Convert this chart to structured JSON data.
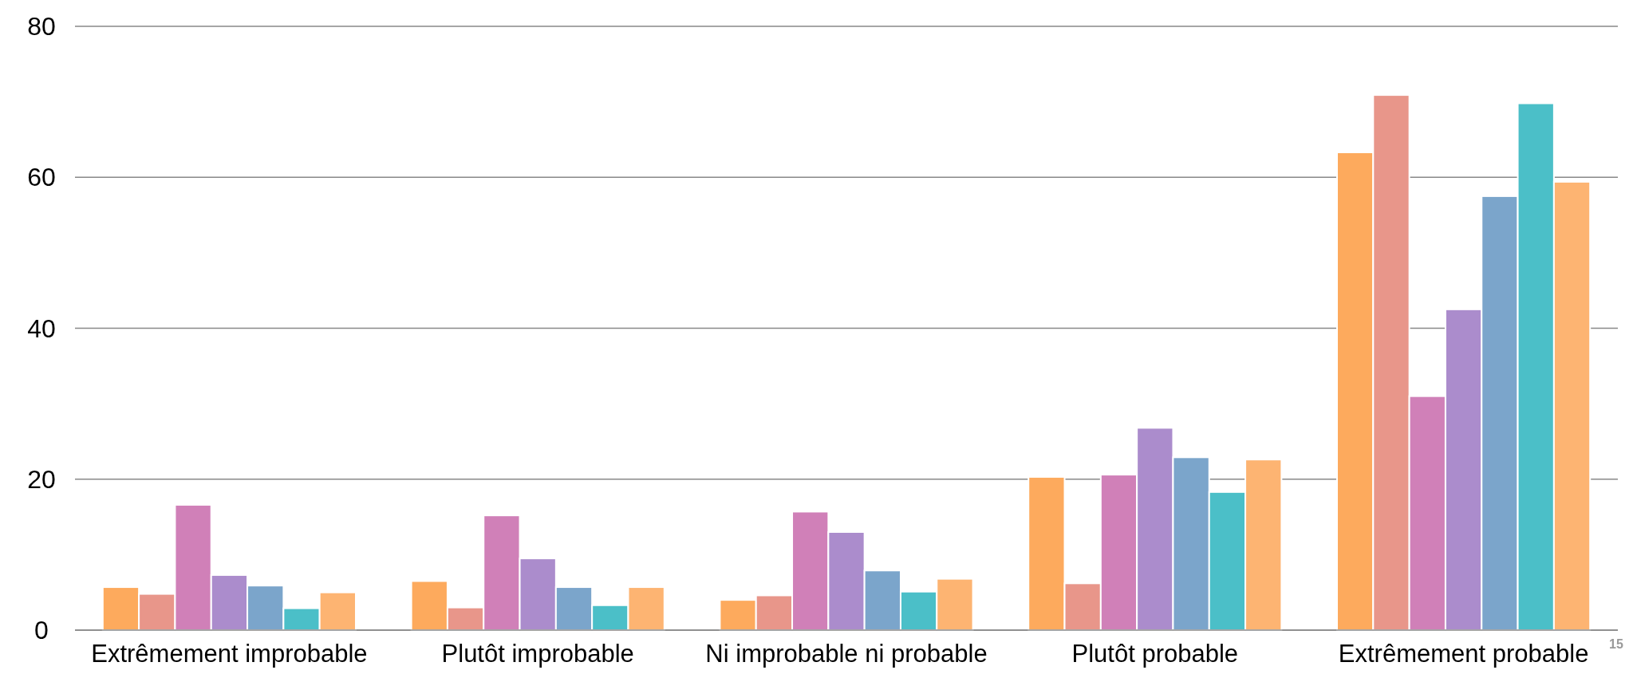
{
  "chart_data": {
    "type": "bar",
    "categories": [
      "Extrêmement improbable",
      "Plutôt improbable",
      "Ni improbable ni probable",
      "Plutôt probable",
      "Extrêmement probable"
    ],
    "series": [
      {
        "color": "#fdaa5d",
        "values": [
          5.7,
          6.5,
          4.0,
          20.3,
          63.3
        ]
      },
      {
        "color": "#e8968a",
        "values": [
          4.8,
          3.0,
          4.6,
          6.2,
          70.9
        ]
      },
      {
        "color": "#d080b8",
        "values": [
          16.6,
          15.2,
          15.7,
          20.6,
          31.0
        ]
      },
      {
        "color": "#ab8ccc",
        "values": [
          7.3,
          9.5,
          13.0,
          26.8,
          42.5
        ]
      },
      {
        "color": "#7ba5cb",
        "values": [
          5.9,
          5.7,
          7.9,
          22.9,
          57.5
        ]
      },
      {
        "color": "#4bbfc8",
        "values": [
          2.9,
          3.3,
          5.1,
          18.3,
          69.8
        ]
      },
      {
        "color": "#fdb472",
        "values": [
          5.0,
          5.7,
          6.8,
          22.6,
          59.4
        ]
      }
    ],
    "ylim": [
      0,
      80
    ],
    "yticks": [
      0,
      20,
      40,
      60,
      80
    ],
    "grid": "y",
    "annotations": [
      "15"
    ]
  }
}
